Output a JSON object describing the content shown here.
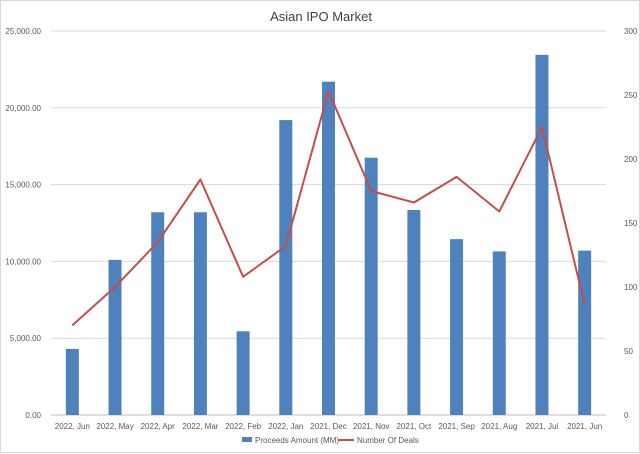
{
  "chart_data": {
    "type": "bar",
    "title": "Asian IPO Market",
    "categories": [
      "2022, Jun",
      "2022, May",
      "2022, Apr",
      "2022, Mar",
      "2022, Feb",
      "2022, Jan",
      "2021, Dec",
      "2021, Nov",
      "2021, Oct",
      "2021, Sep",
      "2021, Aug",
      "2021, Jul",
      "2021, Jun"
    ],
    "series": [
      {
        "name": "Proceeds Amount (MM)",
        "type": "bar",
        "axis": "left",
        "color": "#4f81bd",
        "values": [
          4300,
          10100,
          13200,
          13200,
          5450,
          19200,
          21700,
          16750,
          13350,
          11450,
          10650,
          23450,
          10700
        ]
      },
      {
        "name": "Number Of Deals",
        "type": "line",
        "axis": "right",
        "color": "#c0504d",
        "values": [
          70,
          100,
          135,
          184,
          108,
          132,
          253,
          175,
          166,
          186,
          159,
          225,
          86
        ]
      }
    ],
    "y_left": {
      "min": 0,
      "max": 25000,
      "ticks": [
        "0.00",
        "5,000.00",
        "10,000.00",
        "15,000.00",
        "20,000.00",
        "25,000.00"
      ]
    },
    "y_right": {
      "min": 0,
      "max": 300,
      "ticks": [
        "0",
        "50",
        "100",
        "150",
        "200",
        "250",
        "300"
      ]
    },
    "xlabel": "",
    "ylabel": "",
    "grid": true,
    "legend_position": "bottom"
  }
}
